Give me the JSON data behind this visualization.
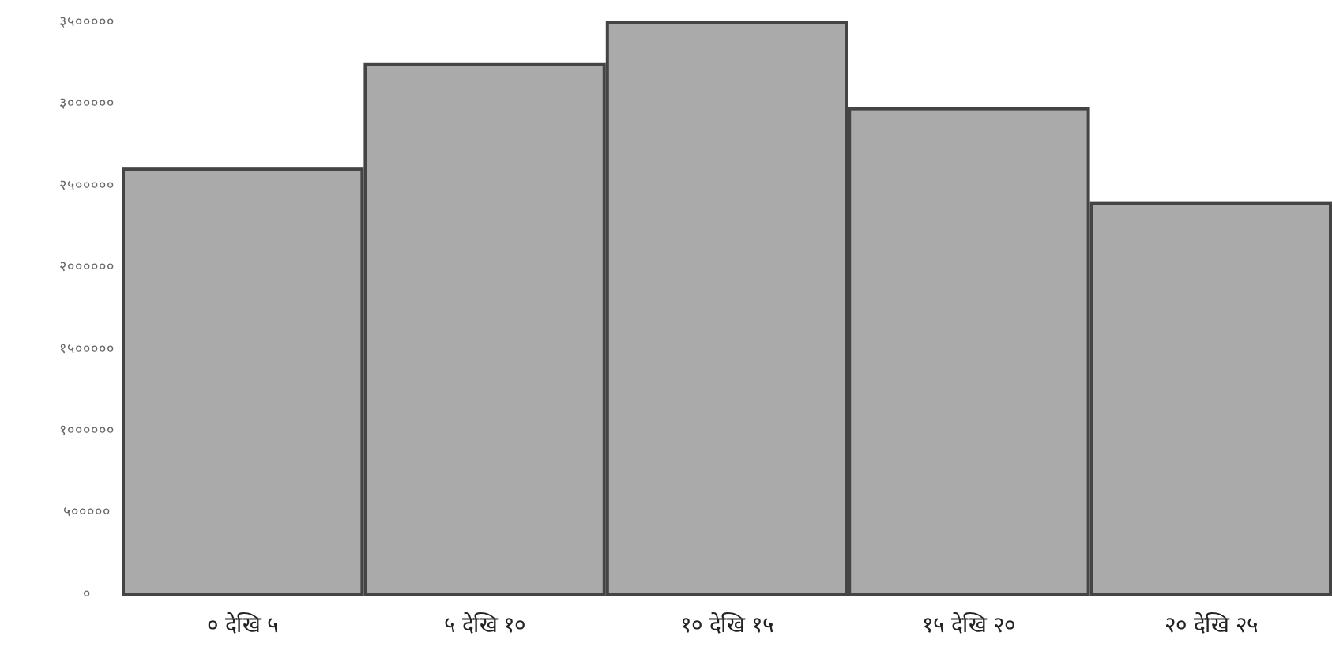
{
  "chart_data": {
    "type": "bar",
    "categories": [
      "० देखि ५",
      "५ देखि १०",
      "१० देखि १५",
      "१५ देखि २०",
      "२० देखि २५"
    ],
    "values": [
      2600000,
      3240000,
      3500000,
      2970000,
      2390000
    ],
    "color": "#aaaaaa",
    "ylim": [
      0,
      3500000
    ],
    "yticks": [
      {
        "value": 0,
        "label": "०"
      },
      {
        "value": 500000,
        "label": "५०००००"
      },
      {
        "value": 1000000,
        "label": "१००००००"
      },
      {
        "value": 1500000,
        "label": "१५०००००"
      },
      {
        "value": 2000000,
        "label": "२००००००"
      },
      {
        "value": 2500000,
        "label": "२५०००००"
      },
      {
        "value": 3000000,
        "label": "३००००००"
      },
      {
        "value": 3500000,
        "label": "३५०००००"
      }
    ],
    "grid": false
  }
}
